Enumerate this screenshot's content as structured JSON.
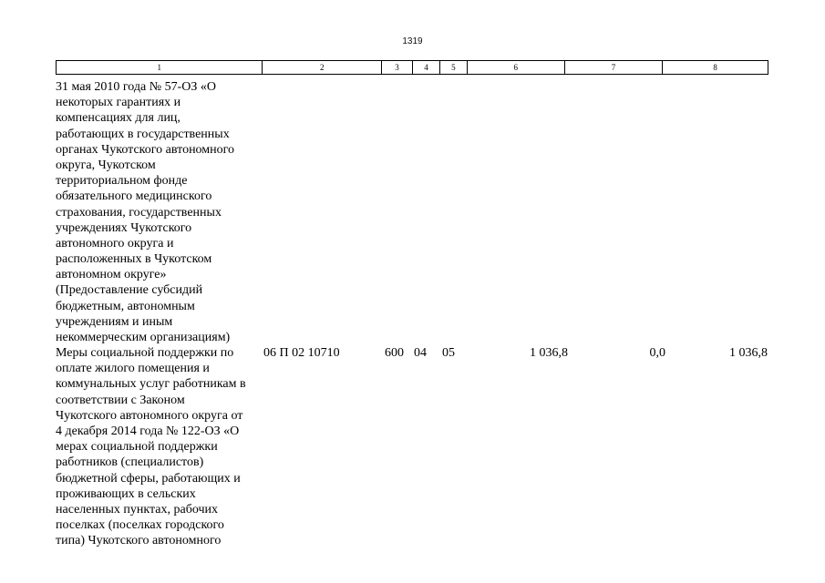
{
  "page_number": "1319",
  "column_headers": [
    "1",
    "2",
    "3",
    "4",
    "5",
    "6",
    "7",
    "8"
  ],
  "row_continued": {
    "name_lines": [
      "31 мая 2010 года № 57-ОЗ «О",
      "некоторых гарантиях и",
      "компенсациях для лиц,",
      "работающих в государственных",
      "органах Чукотского автономного",
      "округа, Чукотском",
      "территориальном фонде",
      "обязательного медицинского",
      "страхования, государственных",
      "учреждениях Чукотского",
      "автономного округа и",
      "расположенных в Чукотском",
      "автономном округе»",
      "(Предоставление субсидий",
      "бюджетным, автономным",
      "учреждениям и иным",
      "некоммерческим организациям)"
    ]
  },
  "row_measures": {
    "name_lines": [
      "Меры социальной поддержки по",
      "оплате жилого помещения и",
      "коммунальных услуг работникам в",
      "соответствии с Законом",
      "Чукотского автономного округа от",
      "4 декабря 2014 года № 122-ОЗ «О",
      "мерах социальной поддержки",
      "работников (специалистов)",
      "бюджетной сферы, работающих и",
      "проживающих в сельских",
      "населенных пунктах, рабочих",
      "поселках (поселках городского",
      "типа) Чукотского автономного"
    ],
    "code": "06 П 02 10710",
    "col3": "600",
    "col4": "04",
    "col5": "05",
    "col6": "1 036,8",
    "col7": "0,0",
    "col8": "1 036,8"
  }
}
